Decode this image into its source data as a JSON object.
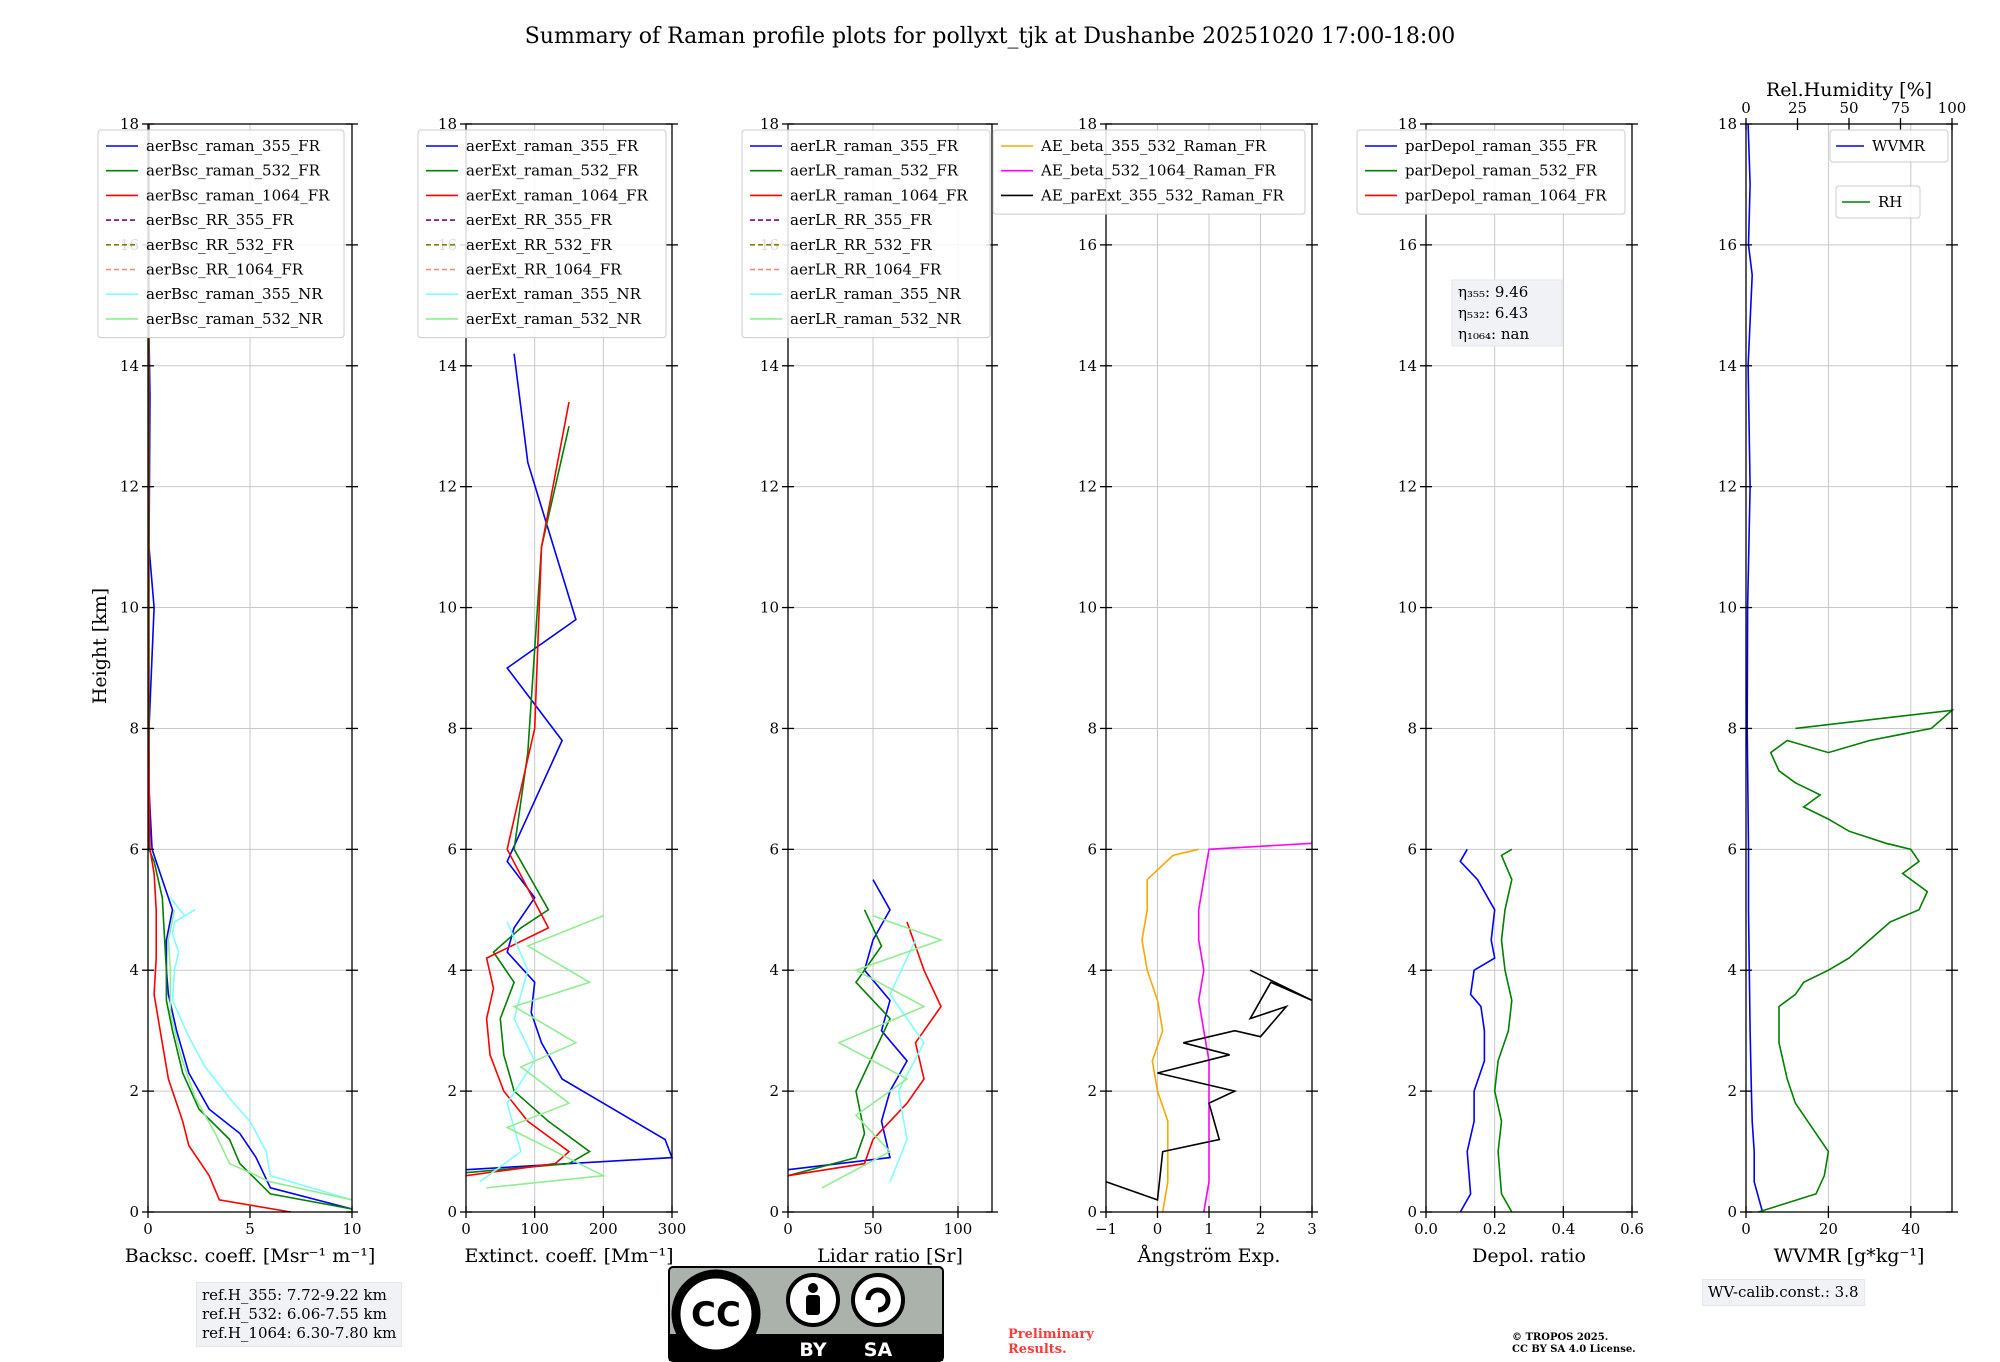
{
  "title": "Summary of Raman profile plots for pollyxt_tjk at Dushanbe 20251020 17:00-18:00",
  "y_axis_label": "Height [km]",
  "y_ticks": [
    "0",
    "2",
    "4",
    "6",
    "8",
    "10",
    "12",
    "14",
    "16",
    "18"
  ],
  "notes": {
    "ref_h_lines": [
      "ref.H_355: 7.72-9.22 km",
      "ref.H_532: 6.06-7.55 km",
      "ref.H_1064: 6.30-7.80 km"
    ],
    "wv_calib": "WV-calib.const.: 3.8",
    "prelim_lines": [
      "Preliminary",
      "Results."
    ],
    "copyright_lines": [
      "© TROPOS 2025.",
      "CC BY SA 4.0 License."
    ]
  },
  "cc_logo": {
    "text": "CC",
    "by": "BY",
    "sa": "SA"
  },
  "colors": {
    "blue": "#0000ff",
    "green": "#008000",
    "red": "#ff0000",
    "purple": "#800080",
    "olive": "#808000",
    "salmon": "#fa8072",
    "cyan": "#7fffff",
    "lightgreen": "#90ee90",
    "orange": "#ffa500",
    "magenta": "#ff00ff",
    "black": "#000000"
  },
  "chart_data": [
    {
      "id": "bsc",
      "type": "line",
      "xlabel": "Backsc. coeff. [Msr⁻¹ m⁻¹]",
      "xlim": [
        0,
        10
      ],
      "ylim": [
        0,
        18
      ],
      "xticks": [
        {
          "v": 0,
          "label": "0"
        },
        {
          "v": 5,
          "label": "5"
        },
        {
          "v": 10,
          "label": "10"
        }
      ],
      "series": [
        {
          "name": "aerBsc_raman_355_FR",
          "color": "blue",
          "x": [
            10,
            6,
            5.3,
            4.5,
            3,
            2,
            1.4,
            1.0,
            0.9,
            0.9,
            1.2,
            0.6,
            0.2,
            0.05,
            0.05,
            0.3,
            0.05,
            0.1,
            0.05,
            0.05
          ],
          "y": [
            0.05,
            0.4,
            0.9,
            1.3,
            1.7,
            2.3,
            3.0,
            3.6,
            4.0,
            4.5,
            5.0,
            5.6,
            6.0,
            7.0,
            8.0,
            10.0,
            11.0,
            13.5,
            14.5,
            18
          ]
        },
        {
          "name": "aerBsc_raman_532_FR",
          "color": "green",
          "x": [
            10,
            6,
            4.5,
            4,
            2.5,
            1.7,
            1.2,
            0.9,
            0.9,
            0.8,
            0.7,
            0.3,
            0.05,
            0.05,
            0.05
          ],
          "y": [
            0.05,
            0.3,
            0.8,
            1.2,
            1.7,
            2.3,
            3.0,
            3.5,
            4.0,
            4.6,
            5.2,
            5.8,
            6.0,
            10,
            18
          ]
        },
        {
          "name": "aerBsc_raman_1064_FR",
          "color": "red",
          "x": [
            7,
            3.5,
            3,
            2,
            1.7,
            1.0,
            0.6,
            0.3,
            0.4,
            0.4,
            0.3,
            0.1,
            0.02,
            0.02
          ],
          "y": [
            0,
            0.2,
            0.6,
            1.1,
            1.5,
            2.2,
            3.0,
            3.6,
            4.2,
            5.0,
            5.6,
            6.0,
            8,
            18
          ]
        },
        {
          "name": "aerBsc_RR_355_FR",
          "color": "purple",
          "dash": true,
          "x": [],
          "y": []
        },
        {
          "name": "aerBsc_RR_532_FR",
          "color": "olive",
          "dash": true,
          "x": [],
          "y": []
        },
        {
          "name": "aerBsc_RR_1064_FR",
          "color": "salmon",
          "dash": true,
          "x": [],
          "y": []
        },
        {
          "name": "aerBsc_raman_355_NR",
          "color": "cyan",
          "x": [
            10,
            6,
            5.8,
            5.0,
            4.2,
            2.8,
            2.0,
            1.2,
            1.3,
            1.5,
            1.2,
            1.3,
            2.3,
            1.8,
            1.1
          ],
          "y": [
            0.2,
            0.6,
            1.0,
            1.5,
            1.8,
            2.4,
            2.9,
            3.5,
            4.0,
            4.3,
            4.6,
            4.8,
            5.0,
            4.9,
            5.2
          ]
        },
        {
          "name": "aerBsc_raman_532_NR",
          "color": "lightgreen",
          "x": [
            10,
            6,
            4.0,
            3.3,
            2.3,
            1.6,
            1.1,
            1.1,
            1.0,
            1.3
          ],
          "y": [
            0.2,
            0.5,
            0.8,
            1.3,
            1.9,
            2.6,
            3.3,
            4.0,
            4.5,
            5.0
          ]
        }
      ]
    },
    {
      "id": "ext",
      "type": "line",
      "xlabel": "Extinct. coeff. [Mm⁻¹]",
      "xlim": [
        0,
        300
      ],
      "ylim": [
        0,
        18
      ],
      "xticks": [
        {
          "v": 0,
          "label": "0"
        },
        {
          "v": 100,
          "label": "100"
        },
        {
          "v": 200,
          "label": "200"
        },
        {
          "v": 300,
          "label": "300"
        }
      ],
      "series": [
        {
          "name": "aerExt_raman_355_FR",
          "color": "blue",
          "x": [
            0,
            300,
            290,
            200,
            140,
            110,
            95,
            100,
            60,
            70,
            100,
            60,
            80,
            140,
            60,
            160,
            90,
            70
          ],
          "y": [
            0.7,
            0.9,
            1.2,
            1.8,
            2.2,
            2.8,
            3.3,
            3.8,
            4.3,
            4.7,
            5.2,
            5.8,
            6.3,
            7.8,
            9.0,
            9.8,
            12.4,
            14.2
          ]
        },
        {
          "name": "aerExt_raman_532_FR",
          "color": "green",
          "x": [
            0,
            150,
            180,
            120,
            70,
            55,
            50,
            70,
            40,
            80,
            120,
            70,
            90,
            110,
            150
          ],
          "y": [
            0.65,
            0.8,
            1.0,
            1.5,
            2.0,
            2.6,
            3.2,
            3.8,
            4.3,
            4.7,
            5.0,
            6.0,
            7.6,
            11.0,
            13.0
          ]
        },
        {
          "name": "aerExt_raman_1064_FR",
          "color": "red",
          "x": [
            0,
            130,
            150,
            90,
            55,
            35,
            30,
            40,
            30,
            120,
            60,
            100,
            110,
            150
          ],
          "y": [
            0.6,
            0.8,
            1.0,
            1.5,
            2.0,
            2.6,
            3.2,
            3.7,
            4.2,
            4.7,
            6.0,
            8.0,
            11.0,
            13.4
          ]
        },
        {
          "name": "aerExt_RR_355_FR",
          "color": "purple",
          "dash": true,
          "x": [],
          "y": []
        },
        {
          "name": "aerExt_RR_532_FR",
          "color": "olive",
          "dash": true,
          "x": [],
          "y": []
        },
        {
          "name": "aerExt_RR_1064_FR",
          "color": "salmon",
          "dash": true,
          "x": [],
          "y": []
        },
        {
          "name": "aerExt_raman_355_NR",
          "color": "cyan",
          "x": [
            20,
            80,
            60,
            100,
            70,
            90,
            60
          ],
          "y": [
            0.5,
            1.0,
            1.8,
            2.5,
            3.2,
            4.0,
            4.8
          ]
        },
        {
          "name": "aerExt_raman_532_NR",
          "color": "lightgreen",
          "x": [
            30,
            200,
            60,
            150,
            80,
            160,
            70,
            180,
            90,
            200
          ],
          "y": [
            0.4,
            0.6,
            1.4,
            1.8,
            2.4,
            2.8,
            3.4,
            3.8,
            4.4,
            4.9
          ]
        }
      ]
    },
    {
      "id": "lr",
      "type": "line",
      "xlabel": "Lidar ratio [Sr]",
      "xlim": [
        0,
        120
      ],
      "ylim": [
        0,
        18
      ],
      "xticks": [
        {
          "v": 0,
          "label": "0"
        },
        {
          "v": 50,
          "label": "50"
        },
        {
          "v": 100,
          "label": "100"
        }
      ],
      "series": [
        {
          "name": "aerLR_raman_355_FR",
          "color": "blue",
          "x": [
            0,
            60,
            55,
            60,
            70,
            55,
            60,
            45,
            50,
            60,
            50
          ],
          "y": [
            0.7,
            0.9,
            1.5,
            2.0,
            2.5,
            3.0,
            3.5,
            4.0,
            4.5,
            5.0,
            5.5
          ]
        },
        {
          "name": "aerLR_raman_532_FR",
          "color": "green",
          "x": [
            0,
            40,
            45,
            40,
            50,
            60,
            40,
            55,
            45
          ],
          "y": [
            0.6,
            0.9,
            1.3,
            2.0,
            2.6,
            3.2,
            3.8,
            4.4,
            5.0
          ]
        },
        {
          "name": "aerLR_raman_1064_FR",
          "color": "red",
          "x": [
            0,
            45,
            50,
            70,
            80,
            75,
            90,
            80,
            70
          ],
          "y": [
            0.6,
            0.8,
            1.2,
            1.8,
            2.2,
            2.8,
            3.4,
            4.0,
            4.8
          ]
        },
        {
          "name": "aerLR_RR_355_FR",
          "color": "purple",
          "dash": true,
          "x": [],
          "y": []
        },
        {
          "name": "aerLR_RR_532_FR",
          "color": "olive",
          "dash": true,
          "x": [],
          "y": []
        },
        {
          "name": "aerLR_RR_1064_FR",
          "color": "salmon",
          "dash": true,
          "x": [],
          "y": []
        },
        {
          "name": "aerLR_raman_355_NR",
          "color": "cyan",
          "x": [
            60,
            70,
            65,
            80,
            60,
            75
          ],
          "y": [
            0.5,
            1.2,
            2.0,
            2.8,
            3.6,
            4.5
          ]
        },
        {
          "name": "aerLR_raman_532_NR",
          "color": "lightgreen",
          "x": [
            20,
            60,
            40,
            70,
            30,
            80,
            40,
            90,
            50
          ],
          "y": [
            0.4,
            1.0,
            1.6,
            2.2,
            2.8,
            3.4,
            4.0,
            4.5,
            4.9
          ]
        }
      ]
    },
    {
      "id": "ae",
      "type": "line",
      "xlabel": "Ångström Exp.",
      "xlim": [
        -1,
        3
      ],
      "ylim": [
        0,
        18
      ],
      "xticks": [
        {
          "v": -1,
          "label": "−1"
        },
        {
          "v": 0,
          "label": "0"
        },
        {
          "v": 1,
          "label": "1"
        },
        {
          "v": 2,
          "label": "2"
        },
        {
          "v": 3,
          "label": "3"
        }
      ],
      "series": [
        {
          "name": "AE_beta_355_532_Raman_FR",
          "color": "orange",
          "x": [
            0.1,
            0.2,
            0.2,
            0.0,
            -0.1,
            0.1,
            0.0,
            -0.2,
            -0.3,
            -0.2,
            -0.2,
            0.3,
            0.8
          ],
          "y": [
            0,
            0.5,
            1.5,
            2.0,
            2.5,
            3.0,
            3.5,
            4.0,
            4.5,
            5.0,
            5.5,
            5.9,
            6.0
          ]
        },
        {
          "name": "AE_beta_532_1064_Raman_FR",
          "color": "magenta",
          "x": [
            0.9,
            1.0,
            1.0,
            1.0,
            0.9,
            0.8,
            0.9,
            0.8,
            0.8,
            0.9,
            1.0,
            3.0
          ],
          "y": [
            0,
            0.5,
            1.5,
            2.5,
            3.0,
            3.5,
            4.0,
            4.5,
            5.0,
            5.5,
            6.0,
            6.1
          ]
        },
        {
          "name": "AE_parExt_355_532_Raman_FR",
          "color": "black",
          "x": [
            -1.0,
            0.0,
            0.1,
            1.2,
            1.0,
            1.5,
            0.0,
            1.4,
            0.5,
            1.5,
            2.0,
            2.5,
            1.8,
            2.2,
            3.0,
            1.8
          ],
          "y": [
            0.5,
            0.2,
            1.0,
            1.2,
            1.8,
            2.0,
            2.3,
            2.6,
            2.8,
            3.0,
            2.9,
            3.4,
            3.2,
            3.8,
            3.5,
            4.0
          ]
        }
      ]
    },
    {
      "id": "depol",
      "type": "line",
      "xlabel": "Depol. ratio",
      "xlim": [
        0,
        0.6
      ],
      "ylim": [
        0,
        18
      ],
      "xticks": [
        {
          "v": 0,
          "label": "0.0"
        },
        {
          "v": 0.2,
          "label": "0.2"
        },
        {
          "v": 0.4,
          "label": "0.4"
        },
        {
          "v": 0.6,
          "label": "0.6"
        }
      ],
      "annotations": [
        "η₃₅₅: 9.46",
        "η₅₃₂: 6.43",
        "η₁₀₆₄: nan"
      ],
      "series": [
        {
          "name": "parDepol_raman_355_FR",
          "color": "blue",
          "x": [
            0.1,
            0.13,
            0.12,
            0.14,
            0.14,
            0.17,
            0.17,
            0.16,
            0.13,
            0.14,
            0.2,
            0.19,
            0.2,
            0.15,
            0.1,
            0.12
          ],
          "y": [
            0,
            0.3,
            1.0,
            1.5,
            2.0,
            2.5,
            3.0,
            3.4,
            3.6,
            4.0,
            4.2,
            4.5,
            5.0,
            5.5,
            5.8,
            6.0
          ]
        },
        {
          "name": "parDepol_raman_532_FR",
          "color": "green",
          "x": [
            0.25,
            0.22,
            0.21,
            0.22,
            0.2,
            0.21,
            0.24,
            0.25,
            0.23,
            0.22,
            0.23,
            0.25,
            0.22,
            0.25
          ],
          "y": [
            0,
            0.3,
            1.0,
            1.5,
            2.0,
            2.5,
            3.0,
            3.5,
            4.0,
            4.5,
            5.0,
            5.5,
            5.9,
            6.0
          ]
        },
        {
          "name": "parDepol_raman_1064_FR",
          "color": "red",
          "x": [],
          "y": []
        }
      ]
    },
    {
      "id": "wv",
      "type": "line",
      "xlabel": "WVMR [g*kg⁻¹]",
      "top_xlabel": "Rel.Humidity [%]",
      "xlim": [
        0,
        50
      ],
      "ylim": [
        0,
        18
      ],
      "xticks": [
        {
          "v": 0,
          "label": "0"
        },
        {
          "v": 20,
          "label": "20"
        },
        {
          "v": 40,
          "label": "40"
        }
      ],
      "top_xticks": [
        {
          "v": 0,
          "label": "0"
        },
        {
          "v": 25,
          "label": "25"
        },
        {
          "v": 50,
          "label": "50"
        },
        {
          "v": 75,
          "label": "75"
        },
        {
          "v": 100,
          "label": "100"
        }
      ],
      "series": [
        {
          "name": "WVMR",
          "color": "blue",
          "x": [
            4,
            2,
            2,
            1.5,
            1.3,
            1,
            0.8,
            0.6,
            0.6,
            0.3,
            0.4,
            1,
            0.5,
            1.5,
            0.6,
            1,
            0.5
          ],
          "y": [
            0,
            0.5,
            1.0,
            1.5,
            2.0,
            3.0,
            4.0,
            5.0,
            6.0,
            8.0,
            10.0,
            12.0,
            14.0,
            15.5,
            16.0,
            17.0,
            18.0
          ]
        },
        {
          "name": "RH",
          "color": "green",
          "x": [
            3,
            17,
            19,
            20,
            16,
            12,
            10,
            8,
            8,
            12,
            14,
            20,
            25,
            30,
            35,
            42,
            44,
            38,
            42,
            40,
            34,
            25,
            20,
            14,
            18,
            12,
            8,
            6,
            10,
            20,
            30,
            45,
            50,
            12
          ],
          "y": [
            0,
            0.3,
            0.6,
            1.0,
            1.4,
            1.8,
            2.2,
            2.8,
            3.4,
            3.6,
            3.8,
            4.0,
            4.2,
            4.5,
            4.8,
            5.0,
            5.3,
            5.6,
            5.8,
            6.0,
            6.1,
            6.3,
            6.5,
            6.7,
            6.9,
            7.1,
            7.3,
            7.6,
            7.8,
            7.6,
            7.8,
            8.0,
            8.3,
            8.0
          ]
        }
      ]
    }
  ]
}
